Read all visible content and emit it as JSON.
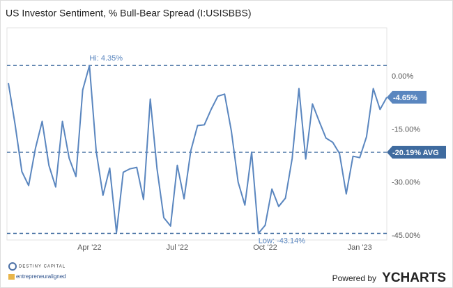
{
  "chart_data": {
    "type": "line",
    "title": "US Investor Sentiment, % Bull-Bear Spread (I:USISBBS)",
    "categories": [
      null,
      null,
      null,
      null,
      null,
      null,
      null,
      null,
      null,
      null,
      null,
      null,
      "Apr '22",
      null,
      null,
      null,
      null,
      null,
      null,
      null,
      null,
      null,
      null,
      null,
      null,
      "Jul '22",
      null,
      null,
      null,
      null,
      null,
      null,
      null,
      null,
      null,
      null,
      null,
      null,
      "Oct '22",
      null,
      null,
      null,
      null,
      null,
      null,
      null,
      null,
      null,
      null,
      null,
      null,
      null,
      "Jan '23",
      null,
      null,
      null,
      null
    ],
    "series": [
      {
        "name": "US Investor Sentiment, % Bull-Bear Spread",
        "color": "#5a86bf",
        "values": [
          -0.59,
          -12.4,
          -25.66,
          -29.6,
          -19.14,
          -11.45,
          -23.88,
          -30.0,
          -11.45,
          -21.91,
          -27.04,
          -2.57,
          4.35,
          -19.93,
          -32.37,
          -24.67,
          -42.9,
          -25.85,
          -24.87,
          -24.47,
          -33.55,
          -5.13,
          -24.87,
          -38.68,
          -41.05,
          -23.88,
          -33.35,
          -19.74,
          -12.63,
          -12.43,
          -8.09,
          -4.34,
          -3.75,
          -14.21,
          -28.62,
          -35.13,
          -20.13,
          -43.14,
          -40.85,
          -30.59,
          -35.52,
          -33.16,
          -21.91,
          -2.17,
          -22.1,
          -6.51,
          -11.45,
          -16.18,
          -17.37,
          -20.53,
          -31.97,
          -21.31,
          -21.71,
          -15.79,
          -2.17,
          -8.09,
          -4.65
        ],
        "value_labels": [
          null,
          null,
          null,
          null,
          null,
          null,
          null,
          null,
          null,
          null,
          null,
          null,
          null,
          null,
          null,
          null,
          null,
          null,
          null,
          null,
          null,
          null,
          null,
          null,
          null,
          null,
          null,
          null,
          null,
          null,
          null,
          null,
          null,
          null,
          null,
          null,
          null,
          null,
          null,
          null,
          null,
          null,
          null,
          null,
          null,
          null,
          null,
          null,
          null,
          null,
          null,
          null,
          null,
          null,
          null,
          null,
          "-4.65%"
        ]
      }
    ],
    "ylim": [
      -45,
      15
    ],
    "yticks": [
      {
        "value": 0,
        "label": "0.00%"
      },
      {
        "value": -15,
        "label": "-15.00%"
      },
      {
        "value": -30,
        "label": "-30.00%"
      },
      {
        "value": -45,
        "label": "-45.00%"
      }
    ],
    "grid": false,
    "annotations": [
      {
        "text": "Hi: 4.35%",
        "value": 4.35,
        "index": 12,
        "kind": "high"
      },
      {
        "text": "Low: -43.14%",
        "value": -43.14,
        "index": 37,
        "kind": "low"
      },
      {
        "text": "-20.19% AVG",
        "value": -20.19,
        "kind": "average"
      }
    ]
  },
  "footer": {
    "logo_1": "DESTINY CAPITAL",
    "logo_2": "entrepreneuraligned",
    "powered_by": "Powered by",
    "brand": "YCHARTS"
  }
}
